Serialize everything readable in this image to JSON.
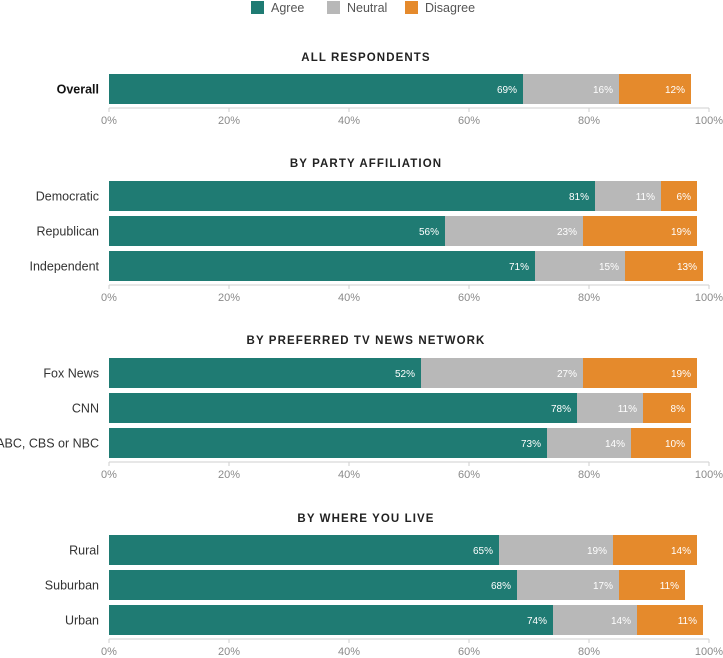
{
  "chart_data": {
    "type": "bar",
    "orientation": "horizontal",
    "stacked": true,
    "legend": {
      "position": "top-center",
      "items": [
        {
          "name": "Agree",
          "color": "#1f7b73"
        },
        {
          "name": "Neutral",
          "color": "#b8b8b8"
        },
        {
          "name": "Disagree",
          "color": "#e58a2c"
        }
      ]
    },
    "xlim": [
      0,
      100
    ],
    "x_ticks": [
      "0%",
      "20%",
      "40%",
      "60%",
      "80%",
      "100%"
    ],
    "grid": false,
    "panels": [
      {
        "title": "ALL RESPONDENTS",
        "rows": [
          {
            "category": "Overall",
            "bold": true,
            "values": [
              69,
              16,
              12
            ],
            "labels": [
              "69%",
              "16%",
              "12%"
            ]
          }
        ]
      },
      {
        "title": "BY PARTY AFFILIATION",
        "rows": [
          {
            "category": "Democratic",
            "values": [
              81,
              11,
              6
            ],
            "labels": [
              "81%",
              "11%",
              "6%"
            ]
          },
          {
            "category": "Republican",
            "values": [
              56,
              23,
              19
            ],
            "labels": [
              "56%",
              "23%",
              "19%"
            ]
          },
          {
            "category": "Independent",
            "values": [
              71,
              15,
              13
            ],
            "labels": [
              "71%",
              "15%",
              "13%"
            ]
          }
        ]
      },
      {
        "title": "BY PREFERRED TV NEWS NETWORK",
        "rows": [
          {
            "category": "Fox News",
            "values": [
              52,
              27,
              19
            ],
            "labels": [
              "52%",
              "27%",
              "19%"
            ]
          },
          {
            "category": "CNN",
            "values": [
              78,
              11,
              8
            ],
            "labels": [
              "78%",
              "11%",
              "8%"
            ]
          },
          {
            "category": "ABC, CBS or NBC",
            "values": [
              73,
              14,
              10
            ],
            "labels": [
              "73%",
              "14%",
              "10%"
            ]
          }
        ]
      },
      {
        "title": "BY WHERE YOU LIVE",
        "rows": [
          {
            "category": "Rural",
            "values": [
              65,
              19,
              14
            ],
            "labels": [
              "65%",
              "19%",
              "14%"
            ]
          },
          {
            "category": "Suburban",
            "values": [
              68,
              17,
              11
            ],
            "labels": [
              "68%",
              "17%",
              "11%"
            ]
          },
          {
            "category": "Urban",
            "values": [
              74,
              14,
              11
            ],
            "labels": [
              "74%",
              "14%",
              "11%"
            ]
          }
        ]
      }
    ]
  }
}
